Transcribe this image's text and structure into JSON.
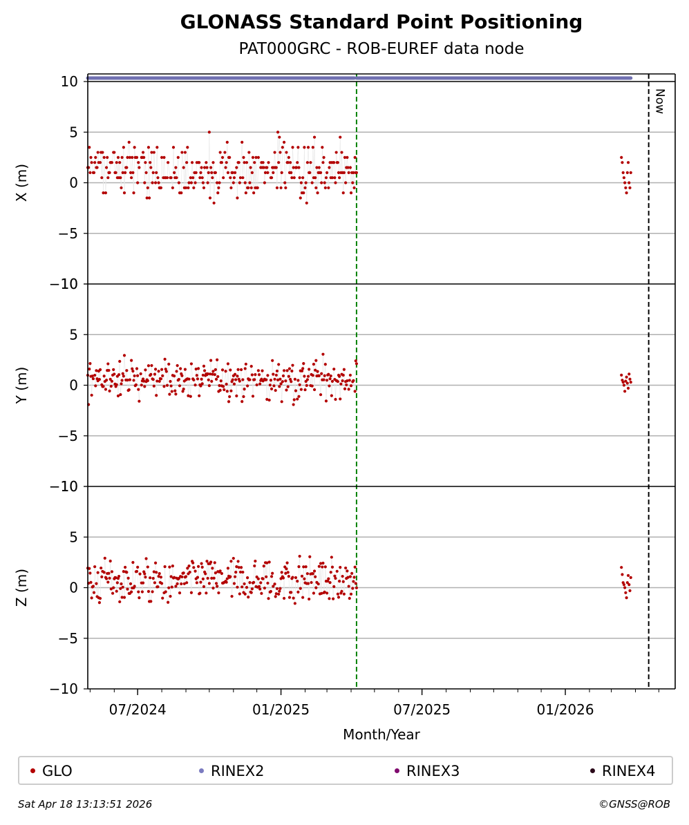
{
  "chart_data": {
    "type": "scatter",
    "title": "GLONASS Standard Point Positioning",
    "subtitle": "PAT000GRC - ROB-EUREF data node",
    "xlabel": "Month/Year",
    "x_range": [
      "2024-04-28",
      "2026-05-22"
    ],
    "x_tick_labels": [
      "07/2024",
      "01/2025",
      "07/2025",
      "01/2026"
    ],
    "x_tick_dates": [
      "2024-07-01",
      "2025-01-01",
      "2025-07-01",
      "2026-01-01"
    ],
    "vertical_markers": [
      {
        "date": "2025-04-08",
        "color": "#008000",
        "style": "dashed"
      },
      {
        "date": "2026-04-18",
        "color": "#000000",
        "style": "dashed",
        "label": "Now"
      }
    ],
    "rinex2_availability": [
      [
        "2024-04-28",
        "2025-04-05"
      ],
      [
        "2025-04-08",
        "2026-03-26"
      ]
    ],
    "panels": [
      {
        "ylabel": "X (m)",
        "ylim": [
          -10,
          10
        ],
        "yticks": [
          -10,
          -5,
          0,
          5,
          10
        ],
        "period1": {
          "start": "2024-04-28",
          "end": "2025-04-08",
          "center": 1.0,
          "spread": 1.4,
          "min": -4.5,
          "max": 5.5
        },
        "period2": {
          "start": "2026-03-14",
          "end": "2026-03-26",
          "values": [
            2.5,
            2.0,
            1.0,
            0.5,
            0.0,
            -0.5,
            -1.0,
            1.0,
            2.0,
            0.0,
            -0.5,
            1.0
          ]
        }
      },
      {
        "ylabel": "Y (m)",
        "ylim": [
          -10,
          10
        ],
        "yticks": [
          -10,
          -5,
          0,
          5,
          10
        ],
        "period1": {
          "start": "2024-04-28",
          "end": "2025-04-08",
          "center": 0.6,
          "spread": 0.9,
          "min": -2.2,
          "max": 3.3
        },
        "period2": {
          "start": "2026-03-14",
          "end": "2026-03-26",
          "values": [
            1.0,
            0.5,
            0.3,
            0.0,
            -0.6,
            0.4,
            0.8,
            0.2,
            -0.3,
            1.1,
            0.6,
            0.3
          ]
        }
      },
      {
        "ylabel": "Z (m)",
        "ylim": [
          -10,
          10
        ],
        "yticks": [
          -10,
          -5,
          0,
          5,
          10
        ],
        "period1": {
          "start": "2024-04-28",
          "end": "2025-04-08",
          "center": 0.6,
          "spread": 1.1,
          "min": -3.8,
          "max": 3.7
        },
        "period2": {
          "start": "2026-03-14",
          "end": "2026-03-26",
          "values": [
            2.0,
            1.3,
            0.5,
            0.3,
            0.0,
            -0.5,
            -1.0,
            0.5,
            1.2,
            0.3,
            -0.3,
            1.0
          ]
        }
      }
    ],
    "series_colors": {
      "GLO": "#b30000",
      "RINEX2": "#7070b0",
      "RINEX3": "#7b1270",
      "RINEX4": "#2b0a1a"
    }
  },
  "legend": {
    "items": [
      {
        "label": "GLO",
        "color": "#b30000"
      },
      {
        "label": "RINEX2",
        "color": "#7b7bc0"
      },
      {
        "label": "RINEX3",
        "color": "#800a6e"
      },
      {
        "label": "RINEX4",
        "color": "#2b0a1a"
      }
    ]
  },
  "now_label": "Now",
  "footer": {
    "timestamp": "Sat Apr 18 13:13:51 2026",
    "copyright": "©GNSS@ROB"
  }
}
